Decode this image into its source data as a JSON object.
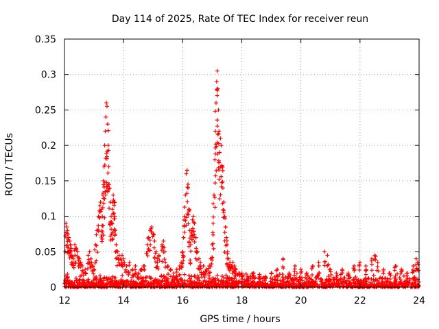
{
  "chart_data": {
    "type": "scatter",
    "title": "Day 114 of 2025, Rate Of TEC Index for receiver reun",
    "xlabel": "GPS time / hours",
    "ylabel": "ROTI / TECUs",
    "xlim": [
      12,
      24
    ],
    "ylim": [
      0,
      0.35
    ],
    "x_ticks": [
      12,
      14,
      16,
      18,
      20,
      22,
      24
    ],
    "y_ticks": [
      0,
      0.05,
      0.1,
      0.15,
      0.2,
      0.25,
      0.3,
      0.35
    ],
    "x_tick_labels": [
      "12",
      "14",
      "16",
      "18",
      "20",
      "22",
      "24"
    ],
    "y_tick_labels": [
      "0",
      "0.05",
      "0.1",
      "0.15",
      "0.2",
      "0.25",
      "0.3",
      "0.35"
    ],
    "grid": true,
    "marker": "+",
    "color": "#ff0000",
    "series": [
      {
        "name": "ROTI",
        "points": [
          [
            12.05,
            0.09
          ],
          [
            12.08,
            0.085
          ],
          [
            12.1,
            0.08
          ],
          [
            12.12,
            0.075
          ],
          [
            12.15,
            0.07
          ],
          [
            12.18,
            0.065
          ],
          [
            12.2,
            0.06
          ],
          [
            12.22,
            0.05
          ],
          [
            12.25,
            0.045
          ],
          [
            12.3,
            0.04
          ],
          [
            12.35,
            0.06
          ],
          [
            12.4,
            0.055
          ],
          [
            12.45,
            0.05
          ],
          [
            12.5,
            0.04
          ],
          [
            12.55,
            0.035
          ],
          [
            12.6,
            0.03
          ],
          [
            12.7,
            0.025
          ],
          [
            12.8,
            0.045
          ],
          [
            12.85,
            0.05
          ],
          [
            12.9,
            0.04
          ],
          [
            12.95,
            0.03
          ],
          [
            13.0,
            0.025
          ],
          [
            13.05,
            0.06
          ],
          [
            13.1,
            0.08
          ],
          [
            13.15,
            0.1
          ],
          [
            13.2,
            0.115
          ],
          [
            13.22,
            0.12
          ],
          [
            13.25,
            0.11
          ],
          [
            13.28,
            0.1
          ],
          [
            13.3,
            0.13
          ],
          [
            13.32,
            0.15
          ],
          [
            13.34,
            0.17
          ],
          [
            13.36,
            0.2
          ],
          [
            13.38,
            0.22
          ],
          [
            13.4,
            0.24
          ],
          [
            13.42,
            0.26
          ],
          [
            13.44,
            0.255
          ],
          [
            13.46,
            0.23
          ],
          [
            13.48,
            0.2
          ],
          [
            13.5,
            0.17
          ],
          [
            13.52,
            0.14
          ],
          [
            13.55,
            0.12
          ],
          [
            13.58,
            0.1
          ],
          [
            13.6,
            0.09
          ],
          [
            13.62,
            0.11
          ],
          [
            13.65,
            0.13
          ],
          [
            13.68,
            0.12
          ],
          [
            13.7,
            0.1
          ],
          [
            13.72,
            0.08
          ],
          [
            13.75,
            0.06
          ],
          [
            13.8,
            0.05
          ],
          [
            13.85,
            0.045
          ],
          [
            13.9,
            0.04
          ],
          [
            13.95,
            0.045
          ],
          [
            14.0,
            0.04
          ],
          [
            14.1,
            0.03
          ],
          [
            14.2,
            0.035
          ],
          [
            14.3,
            0.025
          ],
          [
            14.4,
            0.03
          ],
          [
            14.5,
            0.02
          ],
          [
            14.6,
            0.025
          ],
          [
            14.7,
            0.03
          ],
          [
            14.8,
            0.06
          ],
          [
            14.85,
            0.07
          ],
          [
            14.9,
            0.08
          ],
          [
            14.95,
            0.085
          ],
          [
            15.0,
            0.075
          ],
          [
            15.05,
            0.065
          ],
          [
            15.1,
            0.05
          ],
          [
            15.15,
            0.04
          ],
          [
            15.2,
            0.045
          ],
          [
            15.3,
            0.06
          ],
          [
            15.35,
            0.065
          ],
          [
            15.4,
            0.05
          ],
          [
            15.5,
            0.03
          ],
          [
            15.6,
            0.025
          ],
          [
            15.7,
            0.02
          ],
          [
            15.8,
            0.025
          ],
          [
            15.9,
            0.03
          ],
          [
            15.95,
            0.035
          ],
          [
            16.0,
            0.05
          ],
          [
            16.03,
            0.07
          ],
          [
            16.06,
            0.1
          ],
          [
            16.09,
            0.13
          ],
          [
            16.12,
            0.16
          ],
          [
            16.15,
            0.165
          ],
          [
            16.18,
            0.14
          ],
          [
            16.21,
            0.11
          ],
          [
            16.24,
            0.08
          ],
          [
            16.27,
            0.06
          ],
          [
            16.3,
            0.08
          ],
          [
            16.33,
            0.095
          ],
          [
            16.36,
            0.1
          ],
          [
            16.4,
            0.09
          ],
          [
            16.45,
            0.07
          ],
          [
            16.5,
            0.05
          ],
          [
            16.55,
            0.04
          ],
          [
            16.6,
            0.035
          ],
          [
            16.7,
            0.03
          ],
          [
            16.8,
            0.025
          ],
          [
            16.9,
            0.03
          ],
          [
            16.95,
            0.04
          ],
          [
            17.0,
            0.06
          ],
          [
            17.03,
            0.09
          ],
          [
            17.06,
            0.13
          ],
          [
            17.09,
            0.18
          ],
          [
            17.11,
            0.22
          ],
          [
            17.13,
            0.26
          ],
          [
            17.15,
            0.29
          ],
          [
            17.17,
            0.305
          ],
          [
            17.19,
            0.28
          ],
          [
            17.21,
            0.25
          ],
          [
            17.23,
            0.22
          ],
          [
            17.25,
            0.19
          ],
          [
            17.28,
            0.21
          ],
          [
            17.3,
            0.2
          ],
          [
            17.33,
            0.17
          ],
          [
            17.36,
            0.14
          ],
          [
            17.39,
            0.12
          ],
          [
            17.42,
            0.1
          ],
          [
            17.45,
            0.085
          ],
          [
            17.48,
            0.07
          ],
          [
            17.52,
            0.05
          ],
          [
            17.56,
            0.04
          ],
          [
            17.6,
            0.035
          ],
          [
            17.65,
            0.03
          ],
          [
            17.7,
            0.035
          ],
          [
            17.75,
            0.03
          ],
          [
            17.8,
            0.025
          ],
          [
            17.9,
            0.02
          ],
          [
            18.0,
            0.02
          ],
          [
            18.2,
            0.015
          ],
          [
            18.4,
            0.02
          ],
          [
            18.6,
            0.018
          ],
          [
            18.8,
            0.015
          ],
          [
            19.0,
            0.02
          ],
          [
            19.2,
            0.025
          ],
          [
            19.4,
            0.04
          ],
          [
            19.6,
            0.02
          ],
          [
            19.8,
            0.03
          ],
          [
            20.0,
            0.025
          ],
          [
            20.2,
            0.02
          ],
          [
            20.4,
            0.03
          ],
          [
            20.6,
            0.035
          ],
          [
            20.8,
            0.05
          ],
          [
            20.9,
            0.045
          ],
          [
            21.0,
            0.025
          ],
          [
            21.2,
            0.02
          ],
          [
            21.4,
            0.025
          ],
          [
            21.6,
            0.02
          ],
          [
            21.8,
            0.03
          ],
          [
            22.0,
            0.035
          ],
          [
            22.2,
            0.03
          ],
          [
            22.4,
            0.04
          ],
          [
            22.5,
            0.045
          ],
          [
            22.6,
            0.035
          ],
          [
            22.8,
            0.025
          ],
          [
            23.0,
            0.02
          ],
          [
            23.2,
            0.03
          ],
          [
            23.4,
            0.025
          ],
          [
            23.6,
            0.02
          ],
          [
            23.8,
            0.03
          ],
          [
            23.9,
            0.04
          ],
          [
            23.95,
            0.035
          ]
        ],
        "baseline_min": 0.0,
        "baseline_max": 0.02
      }
    ]
  }
}
